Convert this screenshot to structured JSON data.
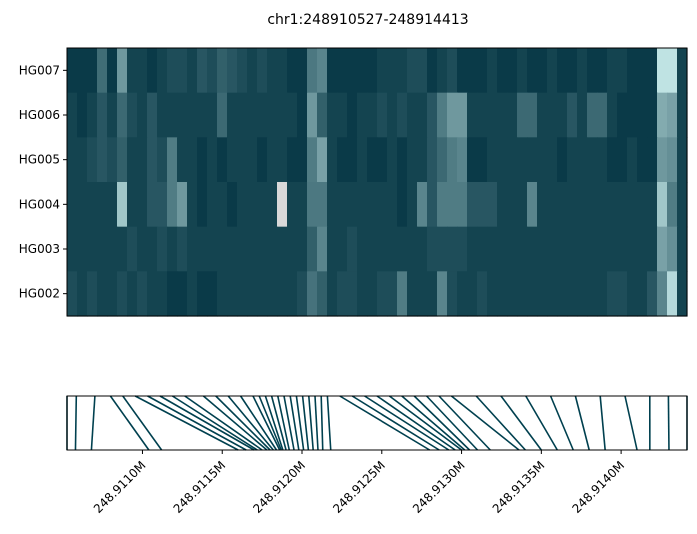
{
  "chart_data": [
    {
      "type": "heatmap",
      "title": "chr1:248910527-248914413",
      "rows": [
        "HG007",
        "HG006",
        "HG005",
        "HG004",
        "HG003",
        "HG002"
      ],
      "n_columns": 62,
      "colors": {
        "low": "#00313f",
        "high": "#c9ecec",
        "missing": "#d9d9d9"
      },
      "values": [
        [
          0.05,
          0.05,
          0.05,
          0.32,
          0.05,
          0.55,
          0.1,
          0.1,
          0.05,
          0.1,
          0.15,
          0.15,
          0.1,
          0.2,
          0.15,
          0.25,
          0.2,
          0.15,
          0.1,
          0.15,
          0.1,
          0.1,
          0.05,
          0.05,
          0.38,
          0.45,
          0.05,
          0.05,
          0.05,
          0.05,
          0.05,
          0.1,
          0.1,
          0.1,
          0.15,
          0.15,
          0.05,
          0.1,
          0.15,
          0.05,
          0.05,
          0.05,
          0.1,
          0.05,
          0.05,
          0.1,
          0.05,
          0.05,
          0.1,
          0.05,
          0.05,
          0.1,
          0.05,
          0.05,
          0.1,
          0.1,
          0.05,
          0.05,
          0.05,
          0.95,
          0.95,
          0.1
        ],
        [
          0.1,
          0.05,
          0.1,
          0.2,
          0.1,
          0.3,
          0.15,
          0.1,
          0.2,
          0.1,
          0.1,
          0.1,
          0.1,
          0.1,
          0.1,
          0.3,
          0.1,
          0.1,
          0.1,
          0.1,
          0.1,
          0.1,
          0.1,
          0.05,
          0.55,
          0.25,
          0.1,
          0.1,
          0.05,
          0.1,
          0.1,
          0.15,
          0.1,
          0.15,
          0.1,
          0.1,
          0.2,
          0.4,
          0.55,
          0.55,
          0.1,
          0.1,
          0.1,
          0.1,
          0.1,
          0.3,
          0.3,
          0.1,
          0.1,
          0.1,
          0.2,
          0.1,
          0.3,
          0.3,
          0.1,
          0.05,
          0.05,
          0.05,
          0.05,
          0.65,
          0.6,
          0.1
        ],
        [
          0.1,
          0.1,
          0.15,
          0.2,
          0.15,
          0.25,
          0.1,
          0.1,
          0.2,
          0.15,
          0.4,
          0.1,
          0.1,
          0.05,
          0.1,
          0.05,
          0.1,
          0.1,
          0.1,
          0.05,
          0.1,
          0.1,
          0.05,
          0.05,
          0.4,
          0.6,
          0.1,
          0.05,
          0.05,
          0.1,
          0.05,
          0.05,
          0.1,
          0.05,
          0.1,
          0.1,
          0.2,
          0.3,
          0.4,
          0.45,
          0.05,
          0.05,
          0.1,
          0.1,
          0.1,
          0.1,
          0.1,
          0.1,
          0.1,
          0.05,
          0.1,
          0.1,
          0.1,
          0.1,
          0.05,
          0.05,
          0.1,
          0.05,
          0.05,
          0.55,
          0.5,
          0.1
        ],
        [
          0.1,
          0.1,
          0.1,
          0.1,
          0.1,
          0.8,
          0.1,
          0.1,
          0.2,
          0.2,
          0.4,
          0.55,
          0.1,
          0.05,
          0.1,
          0.1,
          0.05,
          0.1,
          0.1,
          0.1,
          0.1,
          -1,
          0.1,
          0.1,
          0.38,
          0.38,
          0.1,
          0.1,
          0.1,
          0.1,
          0.1,
          0.1,
          0.1,
          0.05,
          0.1,
          0.45,
          0.2,
          0.4,
          0.4,
          0.4,
          0.2,
          0.2,
          0.2,
          0.1,
          0.1,
          0.1,
          0.45,
          0.1,
          0.1,
          0.1,
          0.1,
          0.1,
          0.1,
          0.1,
          0.1,
          0.1,
          0.1,
          0.1,
          0.1,
          0.8,
          0.4,
          0.1
        ],
        [
          0.1,
          0.1,
          0.1,
          0.1,
          0.1,
          0.1,
          0.15,
          0.1,
          0.1,
          0.15,
          0.1,
          0.15,
          0.1,
          0.1,
          0.1,
          0.1,
          0.1,
          0.1,
          0.1,
          0.1,
          0.1,
          0.1,
          0.1,
          0.1,
          0.25,
          0.45,
          0.1,
          0.1,
          0.15,
          0.1,
          0.1,
          0.1,
          0.1,
          0.1,
          0.1,
          0.1,
          0.15,
          0.15,
          0.15,
          0.15,
          0.1,
          0.1,
          0.1,
          0.1,
          0.1,
          0.1,
          0.1,
          0.1,
          0.1,
          0.1,
          0.1,
          0.1,
          0.1,
          0.1,
          0.1,
          0.1,
          0.1,
          0.1,
          0.1,
          0.6,
          0.5,
          0.1
        ],
        [
          0.15,
          0.1,
          0.15,
          0.1,
          0.1,
          0.15,
          0.1,
          0.15,
          0.1,
          0.1,
          0.05,
          0.05,
          0.1,
          0.05,
          0.05,
          0.1,
          0.1,
          0.1,
          0.1,
          0.1,
          0.1,
          0.1,
          0.1,
          0.15,
          0.35,
          0.25,
          0.1,
          0.15,
          0.15,
          0.1,
          0.1,
          0.15,
          0.15,
          0.4,
          0.1,
          0.1,
          0.1,
          0.45,
          0.15,
          0.1,
          0.1,
          0.15,
          0.1,
          0.1,
          0.1,
          0.1,
          0.1,
          0.1,
          0.1,
          0.1,
          0.1,
          0.1,
          0.1,
          0.1,
          0.15,
          0.15,
          0.1,
          0.1,
          0.2,
          0.45,
          0.9,
          0.1
        ]
      ]
    },
    {
      "type": "genomic-position-links",
      "xlim": [
        248910527,
        248914413
      ],
      "xticks": [
        248911000,
        248911500,
        248912000,
        248912500,
        248913000,
        248913500,
        248914000
      ],
      "xtick_labels": [
        "248.9110M",
        "248.9115M",
        "248.9120M",
        "248.9125M",
        "248.9130M",
        "248.9135M",
        "248.9140M"
      ],
      "line_color": "#00404f"
    }
  ]
}
